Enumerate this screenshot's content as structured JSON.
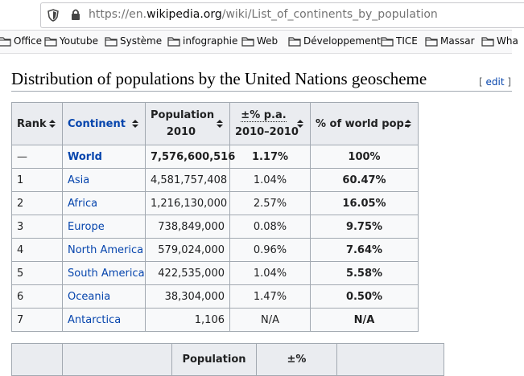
{
  "browser": {
    "url_prefix": "https://en.",
    "url_domain": "wikipedia.org",
    "url_path": "/wiki/List_of_continents_by_population",
    "bookmarks": [
      "Office",
      "Youtube",
      "Système",
      "infographie",
      "Web",
      "Développement",
      "TICE",
      "Massar",
      "Wha"
    ]
  },
  "heading": {
    "title": "Distribution of populations by the United Nations geoscheme",
    "edit_open": "[",
    "edit_label": "edit",
    "edit_close": "]"
  },
  "table": {
    "headers": [
      "Rank",
      "Continent",
      [
        "Population",
        "2010"
      ],
      [
        "±% p.a.",
        "2010–2010"
      ],
      "% of world pop."
    ],
    "rows": [
      [
        "—",
        "World",
        "7,576,600,516",
        "1.17%",
        "100%"
      ],
      [
        "1",
        "Asia",
        "4,581,757,408",
        "1.04%",
        "60.47%"
      ],
      [
        "2",
        "Africa",
        "1,216,130,000",
        "2.57%",
        "16.05%"
      ],
      [
        "3",
        "Europe",
        "738,849,000",
        "0.08%",
        "9.75%"
      ],
      [
        "4",
        "North America",
        "579,024,000",
        "0.96%",
        "7.64%"
      ],
      [
        "5",
        "South America",
        "422,535,000",
        "1.04%",
        "5.58%"
      ],
      [
        "6",
        "Oceania",
        "38,304,000",
        "1.47%",
        "0.50%"
      ],
      [
        "7",
        "Antarctica",
        "1,106",
        "N/A",
        "N/A"
      ]
    ]
  },
  "second_table": {
    "headers": [
      "Population",
      "±%"
    ]
  }
}
